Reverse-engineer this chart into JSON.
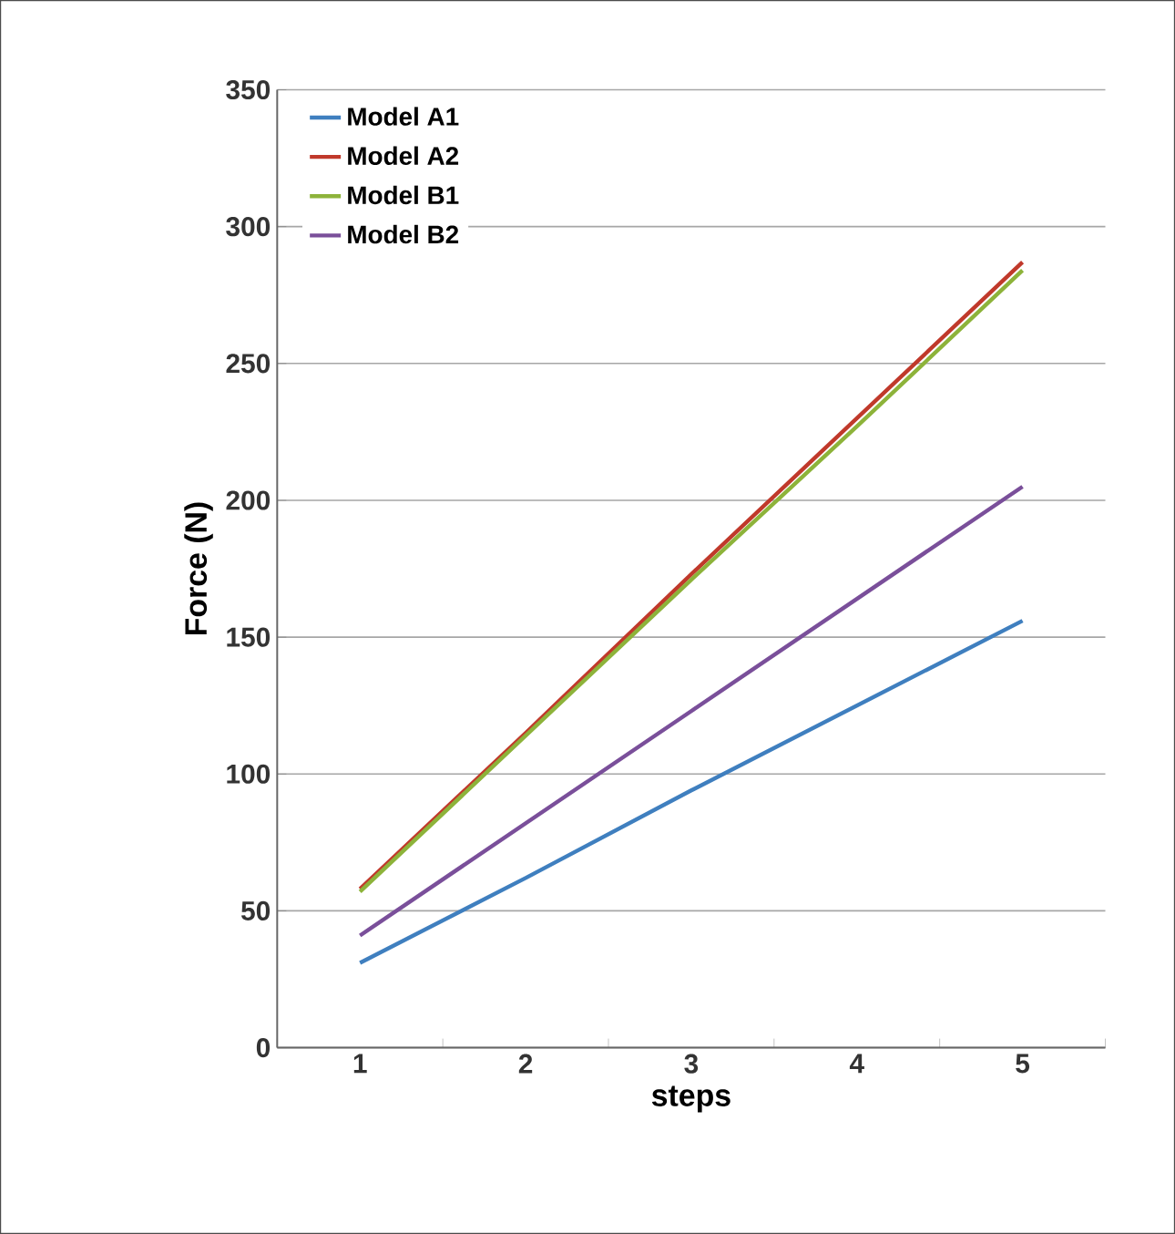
{
  "chart_data": {
    "type": "line",
    "xlabel": "steps",
    "ylabel": "Force (N)",
    "categories": [
      "1",
      "2",
      "3",
      "4",
      "5"
    ],
    "series": [
      {
        "name": "Model A1",
        "color": "#3f7fbf",
        "values": [
          31,
          62,
          94,
          125,
          156
        ]
      },
      {
        "name": "Model A2",
        "color": "#c0392b",
        "values": [
          58,
          115,
          173,
          230,
          287
        ]
      },
      {
        "name": "Model B1",
        "color": "#8db33a",
        "values": [
          57,
          114,
          171,
          227,
          284
        ]
      },
      {
        "name": "Model B2",
        "color": "#7a4f9a",
        "values": [
          41,
          82,
          123,
          164,
          205
        ]
      }
    ],
    "ylim": [
      0,
      350
    ],
    "yticks": [
      0,
      50,
      100,
      150,
      200,
      250,
      300,
      350
    ],
    "grid": "y",
    "legend": "top left",
    "marker": "none",
    "line_style": "solid"
  }
}
